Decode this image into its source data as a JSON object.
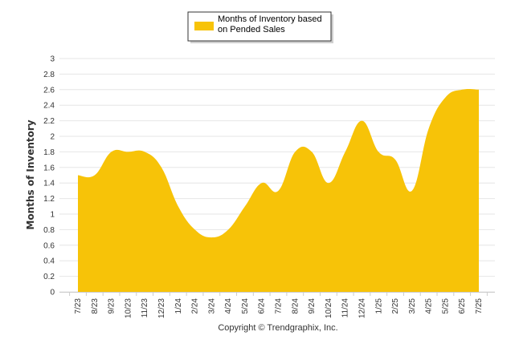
{
  "chart_data": {
    "type": "area",
    "categories": [
      "7/23",
      "8/23",
      "9/23",
      "10/23",
      "11/23",
      "12/23",
      "1/24",
      "2/24",
      "3/24",
      "4/24",
      "5/24",
      "6/24",
      "7/24",
      "8/24",
      "9/24",
      "10/24",
      "11/24",
      "12/24",
      "1/25",
      "2/25",
      "3/25",
      "4/25",
      "5/25",
      "6/25",
      "7/25"
    ],
    "series": [
      {
        "name": "Months of Inventory based on Pended Sales",
        "values": [
          1.5,
          1.5,
          1.8,
          1.8,
          1.8,
          1.6,
          1.1,
          0.8,
          0.7,
          0.8,
          1.1,
          1.4,
          1.3,
          1.8,
          1.8,
          1.4,
          1.8,
          2.2,
          1.8,
          1.7,
          1.3,
          2.1,
          2.5,
          2.6,
          2.6
        ],
        "color": "#f7c308"
      }
    ],
    "ylabel": "Months of Inventory",
    "ylim": [
      0,
      3
    ],
    "yticks": [
      0,
      0.2,
      0.4,
      0.6,
      0.8,
      1,
      1.2,
      1.4,
      1.6,
      1.8,
      2,
      2.2,
      2.4,
      2.6,
      2.8,
      3
    ],
    "grid": true,
    "legend": {
      "position": "top-center",
      "lines": [
        "Months of Inventory based",
        "on Pended Sales"
      ]
    }
  },
  "footer": {
    "copyright": "Copyright © Trendgraphix, Inc."
  },
  "colors": {
    "grid": "#e6e6e6",
    "axis": "#cccccc",
    "legend_border": "#333333"
  }
}
